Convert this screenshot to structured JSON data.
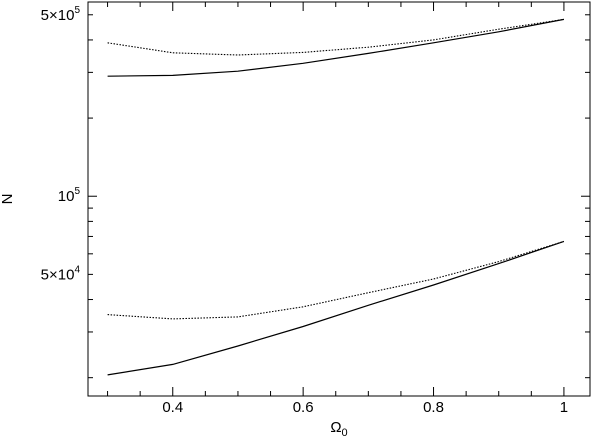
{
  "chart_data": {
    "type": "line",
    "xlabel": "Ω",
    "xlabel_sub": "0",
    "ylabel": "N",
    "xlim": [
      0.27,
      1.04
    ],
    "ylim": [
      17000,
      560000
    ],
    "yscale": "log",
    "grid": false,
    "x_ticks": [
      {
        "value": 0.4,
        "label": "0.4"
      },
      {
        "value": 0.6,
        "label": "0.6"
      },
      {
        "value": 0.8,
        "label": "0.8"
      },
      {
        "value": 1.0,
        "label": "1"
      }
    ],
    "y_ticks": [
      {
        "value": 500000,
        "mant": "5×10",
        "exp": "5"
      },
      {
        "value": 100000,
        "mant": "10",
        "exp": "5"
      },
      {
        "value": 50000,
        "mant": "5×10",
        "exp": "4"
      }
    ],
    "series": [
      {
        "style": "dotted",
        "x": [
          0.3,
          0.4,
          0.5,
          0.6,
          0.7,
          0.8,
          0.9,
          1.0
        ],
        "y": [
          390000,
          357000,
          350000,
          358000,
          375000,
          400000,
          440000,
          480000
        ]
      },
      {
        "style": "solid",
        "x": [
          0.3,
          0.4,
          0.5,
          0.6,
          0.7,
          0.8,
          0.9,
          1.0
        ],
        "y": [
          290000,
          292000,
          303000,
          325000,
          355000,
          390000,
          430000,
          480000
        ]
      },
      {
        "style": "dotted",
        "x": [
          0.3,
          0.4,
          0.5,
          0.6,
          0.7,
          0.8,
          0.9,
          1.0
        ],
        "y": [
          35000,
          33700,
          34300,
          37500,
          42500,
          48000,
          56000,
          67000
        ]
      },
      {
        "style": "solid",
        "x": [
          0.3,
          0.4,
          0.5,
          0.6,
          0.7,
          0.8,
          0.9,
          1.0
        ],
        "y": [
          20500,
          22500,
          26500,
          31500,
          38000,
          45500,
          55000,
          67000
        ]
      }
    ]
  }
}
